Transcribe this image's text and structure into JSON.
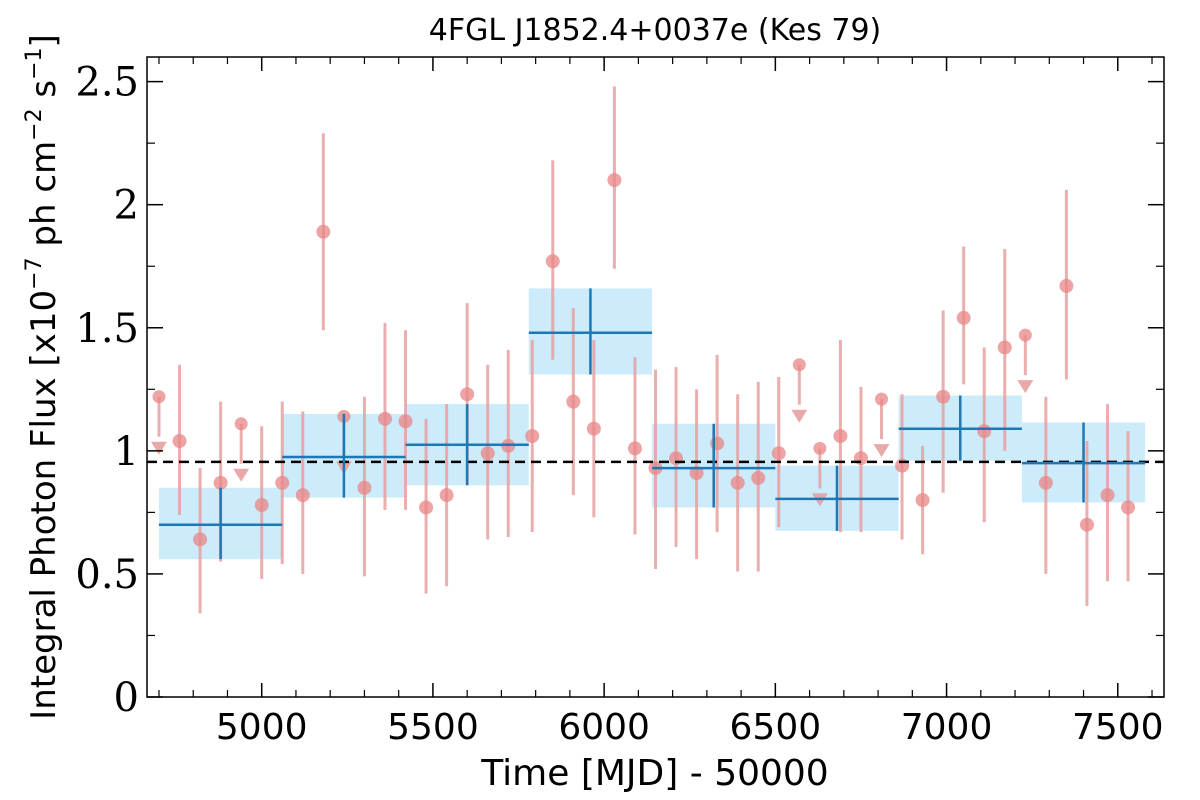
{
  "chart_data": {
    "type": "scatter",
    "title": "4FGL J1852.4+0037e (Kes 79)",
    "xlabel": "Time [MJD] - 50000",
    "ylabel": "Integral Photon Flux [x10",
    "ylabel_exp": "−7",
    "ylabel_mid": " ph cm",
    "ylabel_exp2": "−2",
    "ylabel_end": " s",
    "ylabel_exp3": "−1",
    "ylabel_close": "]",
    "xlim": [
      4665,
      7635
    ],
    "ylim": [
      0,
      2.6
    ],
    "xticks": [
      5000,
      5500,
      6000,
      6500,
      7000,
      7500
    ],
    "xtick_labels": [
      "5000",
      "5500",
      "6000",
      "6500",
      "7000",
      "7500"
    ],
    "yticks": [
      0,
      0.5,
      1,
      1.5,
      2,
      2.5
    ],
    "ytick_labels": [
      "0",
      "0.5",
      "1",
      "1.5",
      "2",
      "2.5"
    ],
    "grid": false,
    "mean_flux": 0.955,
    "colors": {
      "points": "#e88686",
      "errorbars": "#e8a0a0",
      "bins": "#1f77b4",
      "bands": "#ccecfc",
      "mean_line": "#000000"
    },
    "monthly_points": [
      {
        "x": 4700,
        "y": 1.22,
        "ul": true
      },
      {
        "x": 4760,
        "y": 1.04,
        "lo": 0.74,
        "hi": 1.35
      },
      {
        "x": 4820,
        "y": 0.64,
        "lo": 0.34,
        "hi": 0.93
      },
      {
        "x": 4880,
        "y": 0.87,
        "lo": 0.55,
        "hi": 1.2
      },
      {
        "x": 4940,
        "y": 1.11,
        "ul": true
      },
      {
        "x": 5000,
        "y": 0.78,
        "lo": 0.48,
        "hi": 1.1
      },
      {
        "x": 5060,
        "y": 0.87,
        "lo": 0.54,
        "hi": 1.2
      },
      {
        "x": 5120,
        "y": 0.82,
        "lo": 0.5,
        "hi": 1.16
      },
      {
        "x": 5180,
        "y": 1.89,
        "lo": 1.49,
        "hi": 2.29
      },
      {
        "x": 5240,
        "y": 1.14,
        "ul": true
      },
      {
        "x": 5300,
        "y": 0.85,
        "lo": 0.49,
        "hi": 1.22
      },
      {
        "x": 5360,
        "y": 1.13,
        "lo": 0.76,
        "hi": 1.52
      },
      {
        "x": 5420,
        "y": 1.12,
        "lo": 0.76,
        "hi": 1.49
      },
      {
        "x": 5480,
        "y": 0.77,
        "lo": 0.42,
        "hi": 1.13
      },
      {
        "x": 5540,
        "y": 0.82,
        "lo": 0.45,
        "hi": 1.19
      },
      {
        "x": 5600,
        "y": 1.23,
        "lo": 0.86,
        "hi": 1.6
      },
      {
        "x": 5660,
        "y": 0.99,
        "lo": 0.64,
        "hi": 1.35
      },
      {
        "x": 5720,
        "y": 1.02,
        "lo": 0.65,
        "hi": 1.41
      },
      {
        "x": 5790,
        "y": 1.06,
        "lo": 0.67,
        "hi": 1.45
      },
      {
        "x": 5850,
        "y": 1.77,
        "lo": 1.37,
        "hi": 2.18
      },
      {
        "x": 5910,
        "y": 1.2,
        "lo": 0.82,
        "hi": 1.58
      },
      {
        "x": 5970,
        "y": 1.09,
        "lo": 0.73,
        "hi": 1.45
      },
      {
        "x": 6030,
        "y": 2.1,
        "lo": 1.74,
        "hi": 2.48
      },
      {
        "x": 6090,
        "y": 1.01,
        "lo": 0.66,
        "hi": 1.38
      },
      {
        "x": 6150,
        "y": 0.93,
        "lo": 0.52,
        "hi": 1.33
      },
      {
        "x": 6210,
        "y": 0.97,
        "lo": 0.61,
        "hi": 1.34
      },
      {
        "x": 6270,
        "y": 0.91,
        "lo": 0.56,
        "hi": 1.25
      },
      {
        "x": 6330,
        "y": 1.03,
        "lo": 0.67,
        "hi": 1.39
      },
      {
        "x": 6390,
        "y": 0.87,
        "lo": 0.51,
        "hi": 1.23
      },
      {
        "x": 6450,
        "y": 0.89,
        "lo": 0.51,
        "hi": 1.28
      },
      {
        "x": 6510,
        "y": 0.99,
        "lo": 0.69,
        "hi": 1.3
      },
      {
        "x": 6570,
        "y": 1.35,
        "ul": true
      },
      {
        "x": 6630,
        "y": 1.01,
        "ul": true
      },
      {
        "x": 6690,
        "y": 1.06,
        "lo": 0.67,
        "hi": 1.45
      },
      {
        "x": 6750,
        "y": 0.97,
        "lo": 0.67,
        "hi": 1.26
      },
      {
        "x": 6810,
        "y": 1.21,
        "ul": true
      },
      {
        "x": 6870,
        "y": 0.94,
        "lo": 0.64,
        "hi": 1.23
      },
      {
        "x": 6930,
        "y": 0.8,
        "lo": 0.58,
        "hi": 1.02
      },
      {
        "x": 6990,
        "y": 1.22,
        "lo": 0.83,
        "hi": 1.57
      },
      {
        "x": 7050,
        "y": 1.54,
        "lo": 1.27,
        "hi": 1.83
      },
      {
        "x": 7110,
        "y": 1.08,
        "lo": 0.71,
        "hi": 1.42
      },
      {
        "x": 7170,
        "y": 1.42,
        "lo": 1.0,
        "hi": 1.82
      },
      {
        "x": 7230,
        "y": 1.47,
        "ul": true
      },
      {
        "x": 7290,
        "y": 0.87,
        "lo": 0.5,
        "hi": 1.22
      },
      {
        "x": 7350,
        "y": 1.67,
        "lo": 1.29,
        "hi": 2.06
      },
      {
        "x": 7410,
        "y": 0.7,
        "lo": 0.37,
        "hi": 1.04
      },
      {
        "x": 7470,
        "y": 0.82,
        "lo": 0.47,
        "hi": 1.19
      },
      {
        "x": 7530,
        "y": 0.77,
        "lo": 0.47,
        "hi": 1.08
      }
    ],
    "binned_points": [
      {
        "x0": 4700,
        "x1": 5060,
        "xc": 4880,
        "y": 0.7,
        "lo": 0.56,
        "hi": 0.85
      },
      {
        "x0": 5060,
        "x1": 5420,
        "xc": 5240,
        "y": 0.975,
        "lo": 0.81,
        "hi": 1.15
      },
      {
        "x0": 5420,
        "x1": 5780,
        "xc": 5600,
        "y": 1.025,
        "lo": 0.86,
        "hi": 1.19
      },
      {
        "x0": 5780,
        "x1": 6140,
        "xc": 5960,
        "y": 1.48,
        "lo": 1.31,
        "hi": 1.66
      },
      {
        "x0": 6140,
        "x1": 6500,
        "xc": 6320,
        "y": 0.93,
        "lo": 0.77,
        "hi": 1.11
      },
      {
        "x0": 6500,
        "x1": 6860,
        "xc": 6680,
        "y": 0.805,
        "lo": 0.675,
        "hi": 0.94
      },
      {
        "x0": 6860,
        "x1": 7220,
        "xc": 7040,
        "y": 1.09,
        "lo": 0.96,
        "hi": 1.225
      },
      {
        "x0": 7220,
        "x1": 7580,
        "xc": 7400,
        "y": 0.95,
        "lo": 0.79,
        "hi": 1.115
      }
    ]
  }
}
